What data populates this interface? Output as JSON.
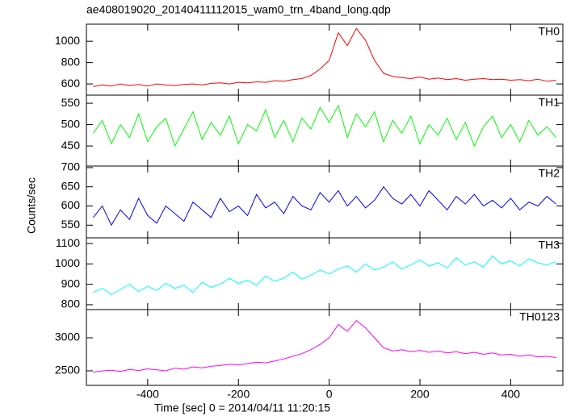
{
  "title": "ae408019020_20140411112015_wam0_trn_4band_long.qdp",
  "x_label": "Time [sec] 0 = 2014/04/11 11:20:15",
  "y_label": "Counts/sec",
  "chart_data": [
    {
      "type": "line",
      "xlim": [
        -535,
        515
      ],
      "ylim": [
        495,
        1160
      ],
      "yticks": [
        600,
        800,
        1000
      ],
      "x": [
        -520,
        -500,
        -480,
        -460,
        -440,
        -420,
        -400,
        -380,
        -360,
        -340,
        -320,
        -300,
        -280,
        -260,
        -240,
        -220,
        -200,
        -180,
        -160,
        -140,
        -120,
        -100,
        -80,
        -60,
        -40,
        -20,
        0,
        20,
        40,
        60,
        80,
        100,
        120,
        140,
        160,
        180,
        200,
        220,
        240,
        260,
        280,
        300,
        320,
        340,
        360,
        380,
        400,
        420,
        440,
        460,
        480,
        500
      ],
      "series": [
        {
          "name": "TH0",
          "color": "#ff0000",
          "values": [
            575,
            590,
            580,
            600,
            585,
            595,
            580,
            600,
            590,
            585,
            595,
            600,
            590,
            605,
            610,
            600,
            615,
            610,
            620,
            615,
            630,
            625,
            640,
            650,
            680,
            740,
            820,
            1080,
            960,
            1120,
            1010,
            820,
            700,
            670,
            660,
            650,
            665,
            645,
            655,
            640,
            650,
            635,
            645,
            650,
            640,
            645,
            635,
            640,
            630,
            645,
            625,
            635
          ]
        }
      ]
    },
    {
      "type": "line",
      "xlim": [
        -535,
        515
      ],
      "ylim": [
        403,
        569
      ],
      "yticks": [
        450,
        500,
        550
      ],
      "x": [
        -520,
        -500,
        -480,
        -460,
        -440,
        -420,
        -400,
        -380,
        -360,
        -340,
        -320,
        -300,
        -280,
        -260,
        -240,
        -220,
        -200,
        -180,
        -160,
        -140,
        -120,
        -100,
        -80,
        -60,
        -40,
        -20,
        0,
        20,
        40,
        60,
        80,
        100,
        120,
        140,
        160,
        180,
        200,
        220,
        240,
        260,
        280,
        300,
        320,
        340,
        360,
        380,
        400,
        420,
        440,
        460,
        480,
        500
      ],
      "series": [
        {
          "name": "TH1",
          "color": "#00ff00",
          "values": [
            480,
            510,
            455,
            500,
            470,
            525,
            460,
            495,
            515,
            450,
            490,
            530,
            465,
            505,
            475,
            520,
            455,
            500,
            485,
            535,
            470,
            510,
            460,
            515,
            490,
            540,
            505,
            545,
            470,
            525,
            495,
            530,
            460,
            510,
            480,
            520,
            455,
            500,
            475,
            515,
            465,
            505,
            450,
            495,
            520,
            470,
            500,
            460,
            510,
            475,
            495,
            470
          ]
        }
      ]
    },
    {
      "type": "line",
      "xlim": [
        -535,
        515
      ],
      "ylim": [
        517,
        704
      ],
      "yticks": [
        550,
        600,
        650,
        700
      ],
      "x": [
        -520,
        -500,
        -480,
        -460,
        -440,
        -420,
        -400,
        -380,
        -360,
        -340,
        -320,
        -300,
        -280,
        -260,
        -240,
        -220,
        -200,
        -180,
        -160,
        -140,
        -120,
        -100,
        -80,
        -60,
        -40,
        -20,
        0,
        20,
        40,
        60,
        80,
        100,
        120,
        140,
        160,
        180,
        200,
        220,
        240,
        260,
        280,
        300,
        320,
        340,
        360,
        380,
        400,
        420,
        440,
        460,
        480,
        500
      ],
      "series": [
        {
          "name": "TH2",
          "color": "#0000ff",
          "values": [
            570,
            600,
            550,
            590,
            565,
            620,
            575,
            555,
            600,
            580,
            560,
            610,
            590,
            570,
            620,
            585,
            600,
            575,
            630,
            595,
            610,
            580,
            625,
            600,
            590,
            635,
            610,
            640,
            600,
            625,
            595,
            615,
            650,
            620,
            605,
            630,
            600,
            640,
            615,
            590,
            625,
            605,
            630,
            600,
            615,
            595,
            620,
            590,
            610,
            600,
            625,
            605
          ]
        }
      ]
    },
    {
      "type": "line",
      "xlim": [
        -535,
        515
      ],
      "ylim": [
        776,
        1128
      ],
      "yticks": [
        800,
        900,
        1000,
        1100
      ],
      "x": [
        -520,
        -500,
        -480,
        -460,
        -440,
        -420,
        -400,
        -380,
        -360,
        -340,
        -320,
        -300,
        -280,
        -260,
        -240,
        -220,
        -200,
        -180,
        -160,
        -140,
        -120,
        -100,
        -80,
        -60,
        -40,
        -20,
        0,
        20,
        40,
        60,
        80,
        100,
        120,
        140,
        160,
        180,
        200,
        220,
        240,
        260,
        280,
        300,
        320,
        340,
        360,
        380,
        400,
        420,
        440,
        460,
        480,
        500
      ],
      "series": [
        {
          "name": "TH3",
          "color": "#00ffff",
          "values": [
            860,
            880,
            850,
            875,
            900,
            865,
            890,
            870,
            905,
            880,
            895,
            860,
            910,
            885,
            900,
            930,
            905,
            920,
            895,
            940,
            915,
            930,
            960,
            925,
            945,
            970,
            950,
            975,
            990,
            960,
            1000,
            970,
            985,
            1010,
            975,
            995,
            1020,
            990,
            1005,
            980,
            1030,
            995,
            1010,
            985,
            1040,
            1000,
            1015,
            990,
            1025,
            1005,
            995,
            1010
          ]
        }
      ]
    },
    {
      "type": "line",
      "xlim": [
        -535,
        515
      ],
      "ylim": [
        2280,
        3427
      ],
      "yticks": [
        2500,
        3000
      ],
      "xticks": [
        -400,
        -200,
        0,
        200,
        400
      ],
      "x": [
        -520,
        -500,
        -480,
        -460,
        -440,
        -420,
        -400,
        -380,
        -360,
        -340,
        -320,
        -300,
        -280,
        -260,
        -240,
        -220,
        -200,
        -180,
        -160,
        -140,
        -120,
        -100,
        -80,
        -60,
        -40,
        -20,
        0,
        20,
        40,
        60,
        80,
        100,
        120,
        140,
        160,
        180,
        200,
        220,
        240,
        260,
        280,
        300,
        320,
        340,
        360,
        380,
        400,
        420,
        440,
        460,
        480,
        500
      ],
      "series": [
        {
          "name": "TH0123",
          "color": "#ff00ff",
          "values": [
            2480,
            2500,
            2510,
            2490,
            2520,
            2505,
            2530,
            2515,
            2500,
            2540,
            2525,
            2560,
            2545,
            2570,
            2580,
            2600,
            2590,
            2610,
            2630,
            2620,
            2650,
            2680,
            2720,
            2760,
            2820,
            2900,
            3000,
            3200,
            3100,
            3260,
            3150,
            3000,
            2850,
            2800,
            2820,
            2790,
            2810,
            2780,
            2800,
            2770,
            2790,
            2760,
            2780,
            2750,
            2770,
            2740,
            2750,
            2720,
            2740,
            2710,
            2720,
            2700
          ]
        }
      ]
    }
  ]
}
